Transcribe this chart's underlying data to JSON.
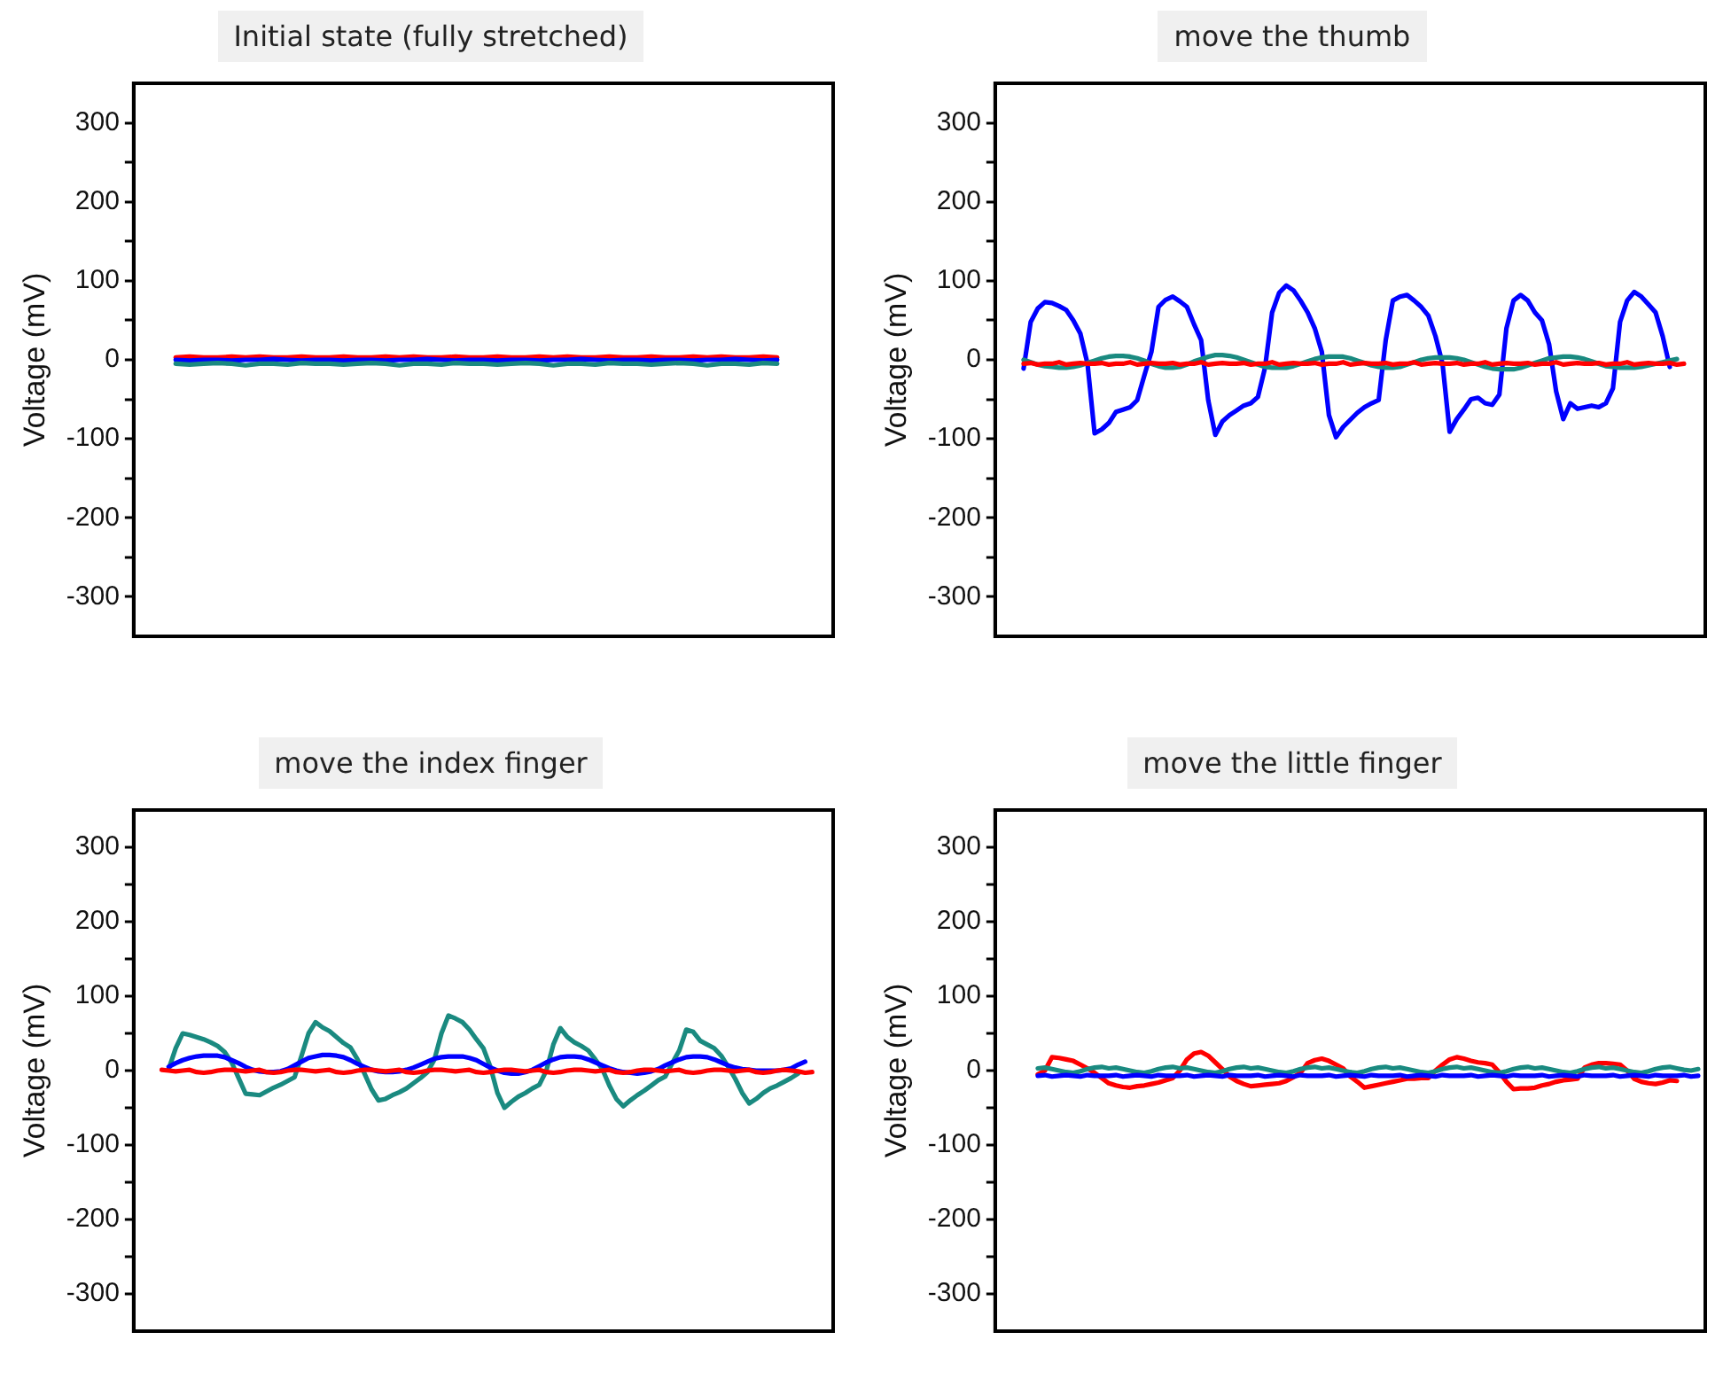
{
  "chart_data": [
    {
      "type": "line",
      "title": "Initial state (fully stretched)",
      "ylabel": "Voltage (mV)",
      "ylim": [
        -350,
        350
      ],
      "yticks": [
        -300,
        {
          "value": -250,
          "label": null
        },
        -200,
        {
          "value": -150,
          "label": null
        },
        -100,
        {
          "value": -50,
          "label": null
        },
        0,
        {
          "value": 50,
          "label": null
        },
        100,
        {
          "value": 150,
          "label": null
        },
        200,
        {
          "value": 250,
          "label": null
        },
        300
      ],
      "tick_labels": "y",
      "marker": "none",
      "line_style": "solid",
      "categories": [
        null,
        null,
        null,
        null,
        null,
        null,
        null,
        null,
        null,
        null,
        null,
        null,
        null,
        null,
        null,
        null,
        null,
        null,
        null,
        null,
        null,
        null,
        null,
        null,
        null,
        null,
        null,
        null,
        null,
        null,
        null,
        null,
        null,
        null,
        null,
        null,
        null,
        null,
        null,
        null,
        null,
        null,
        null,
        null,
        null,
        null,
        null,
        null,
        null,
        null,
        null
      ],
      "series": [
        {
          "color": "#1a8a80",
          "values": [
            null,
            null,
            null,
            -5,
            -6,
            -5,
            -4,
            -5,
            -7,
            -5,
            -5,
            -6,
            -4,
            -5,
            -5,
            -6,
            -5,
            -4,
            -5,
            -7,
            -5,
            -5,
            -6,
            -4,
            -5,
            -5,
            -6,
            -5,
            -4,
            -5,
            -7,
            -5,
            -5,
            -6,
            -4,
            -5,
            -5,
            -6,
            -5,
            -4,
            -5,
            -7,
            -5,
            -5,
            -6,
            -4,
            -5,
            null,
            null,
            null,
            null
          ]
        },
        {
          "color": "#0000ff",
          "values": [
            null,
            null,
            null,
            0,
            -1,
            0,
            0,
            -1,
            0,
            0,
            1,
            0,
            -1,
            0,
            0,
            -1,
            0,
            0,
            -1,
            0,
            0,
            1,
            0,
            -1,
            0,
            0,
            -1,
            0,
            0,
            -1,
            0,
            0,
            1,
            0,
            -1,
            0,
            0,
            -1,
            0,
            0,
            -1,
            0,
            0,
            1,
            0,
            -1,
            0,
            null,
            null,
            null,
            null
          ]
        },
        {
          "color": "#ff0000",
          "values": [
            null,
            null,
            null,
            3,
            4,
            3,
            3,
            4,
            3,
            4,
            3,
            3,
            4,
            3,
            3,
            4,
            3,
            3,
            4,
            3,
            4,
            3,
            3,
            4,
            3,
            3,
            4,
            3,
            3,
            4,
            3,
            4,
            3,
            3,
            4,
            3,
            3,
            4,
            3,
            3,
            4,
            3,
            4,
            3,
            3,
            4,
            3,
            null,
            null,
            null,
            null
          ]
        }
      ]
    },
    {
      "type": "line",
      "title": "move the thumb",
      "ylabel": "Voltage (mV)",
      "ylim": [
        -350,
        350
      ],
      "yticks": [
        -300,
        {
          "value": -250,
          "label": null
        },
        -200,
        {
          "value": -150,
          "label": null
        },
        -100,
        {
          "value": -50,
          "label": null
        },
        0,
        {
          "value": 50,
          "label": null
        },
        100,
        {
          "value": 150,
          "label": null
        },
        200,
        {
          "value": 250,
          "label": null
        },
        300
      ],
      "tick_labels": "y",
      "marker": "none",
      "line_style": "solid",
      "categories": [
        null,
        null,
        null,
        null,
        null,
        null,
        null,
        null,
        null,
        null,
        null,
        null,
        null,
        null,
        null,
        null,
        null,
        null,
        null,
        null,
        null,
        null,
        null,
        null,
        null,
        null,
        null,
        null,
        null,
        null,
        null,
        null,
        null,
        null,
        null,
        null,
        null,
        null,
        null,
        null,
        null,
        null,
        null,
        null,
        null,
        null,
        null,
        null,
        null,
        null,
        null,
        null,
        null,
        null,
        null,
        null,
        null,
        null,
        null,
        null,
        null,
        null,
        null,
        null,
        null,
        null,
        null,
        null,
        null,
        null,
        null,
        null,
        null,
        null,
        null,
        null,
        null,
        null,
        null,
        null,
        null,
        null,
        null,
        null,
        null,
        null,
        null,
        null,
        null,
        null,
        null,
        null,
        null,
        null,
        null,
        null,
        null,
        null,
        null,
        null,
        null
      ],
      "series": [
        {
          "color": "#ff0000",
          "values": [
            null,
            null,
            null,
            null,
            -5,
            -4,
            -6,
            -5,
            -5,
            -3,
            -6,
            -5,
            -4,
            -5,
            -5,
            -4,
            -6,
            -5,
            -5,
            -3,
            -6,
            -5,
            -4,
            -5,
            -5,
            -4,
            -6,
            -5,
            -5,
            -3,
            -6,
            -5,
            -4,
            -5,
            -5,
            -4,
            -6,
            -5,
            -5,
            -3,
            -6,
            -5,
            -4,
            -5,
            -5,
            -4,
            -6,
            -5,
            -5,
            -3,
            -6,
            -5,
            -4,
            -5,
            -5,
            -4,
            -6,
            -5,
            -5,
            -3,
            -6,
            -5,
            -4,
            -5,
            -5,
            -4,
            -6,
            -5,
            -5,
            -3,
            -6,
            -5,
            -4,
            -5,
            -5,
            -4,
            -6,
            -5,
            -5,
            -3,
            -6,
            -5,
            -4,
            -5,
            -5,
            -4,
            -6,
            -5,
            -5,
            -3,
            -6,
            -5,
            -4,
            -5,
            -5,
            -4,
            -6,
            -5,
            null,
            null,
            null
          ]
        },
        {
          "color": "#1a8a80",
          "values": [
            null,
            null,
            null,
            null,
            0,
            -3,
            -6,
            -8,
            -9,
            -10,
            -10,
            -9,
            -7,
            -4,
            -1,
            2,
            4,
            5,
            5,
            4,
            2,
            -1,
            -5,
            -8,
            -10,
            -10,
            -9,
            -6,
            -2,
            1,
            4,
            6,
            6,
            5,
            3,
            0,
            -3,
            -6,
            -9,
            -10,
            -10,
            -10,
            -8,
            -5,
            -2,
            1,
            3,
            4,
            4,
            4,
            2,
            -1,
            -4,
            -7,
            -9,
            -10,
            -10,
            -9,
            -6,
            -3,
            0,
            2,
            3,
            3,
            3,
            2,
            0,
            -3,
            -6,
            -9,
            -11,
            -12,
            -12,
            -12,
            -10,
            -7,
            -4,
            -1,
            2,
            3,
            4,
            4,
            3,
            1,
            -2,
            -5,
            -8,
            -9,
            -10,
            -10,
            -10,
            -9,
            -7,
            -5,
            -3,
            -1,
            1,
            null,
            null,
            null,
            null
          ]
        },
        {
          "color": "#0000ff",
          "values": [
            null,
            null,
            null,
            null,
            -11,
            48,
            65,
            73,
            72,
            68,
            63,
            50,
            33,
            -5,
            -93,
            -88,
            -80,
            -66,
            -63,
            -60,
            -51,
            -20,
            10,
            67,
            76,
            80,
            74,
            67,
            45,
            25,
            -51,
            -95,
            -78,
            -70,
            -64,
            -58,
            -55,
            -47,
            -10,
            60,
            85,
            94,
            88,
            75,
            60,
            40,
            10,
            -70,
            -98,
            -85,
            -76,
            -67,
            -60,
            -55,
            -51,
            25,
            75,
            80,
            82,
            75,
            67,
            56,
            30,
            -5,
            -91,
            -75,
            -63,
            -50,
            -48,
            -55,
            -57,
            -44,
            40,
            75,
            82,
            75,
            60,
            50,
            20,
            -40,
            -75,
            -55,
            -62,
            -60,
            -58,
            -60,
            -55,
            -36,
            48,
            75,
            86,
            80,
            70,
            60,
            30,
            -9,
            null,
            null,
            null,
            null,
            null
          ]
        }
      ]
    },
    {
      "type": "line",
      "title": "move the index finger",
      "ylabel": "Voltage (mV)",
      "ylim": [
        -350,
        350
      ],
      "yticks": [
        -300,
        {
          "value": -250,
          "label": null
        },
        -200,
        {
          "value": -150,
          "label": null
        },
        -100,
        {
          "value": -50,
          "label": null
        },
        0,
        {
          "value": 50,
          "label": null
        },
        100,
        {
          "value": 150,
          "label": null
        },
        200,
        {
          "value": 250,
          "label": null
        },
        300
      ],
      "tick_labels": "y",
      "marker": "none",
      "line_style": "solid",
      "categories": [
        null,
        null,
        null,
        null,
        null,
        null,
        null,
        null,
        null,
        null,
        null,
        null,
        null,
        null,
        null,
        null,
        null,
        null,
        null,
        null,
        null,
        null,
        null,
        null,
        null,
        null,
        null,
        null,
        null,
        null,
        null,
        null,
        null,
        null,
        null,
        null,
        null,
        null,
        null,
        null,
        null,
        null,
        null,
        null,
        null,
        null,
        null,
        null,
        null,
        null,
        null,
        null,
        null,
        null,
        null,
        null,
        null,
        null,
        null,
        null,
        null,
        null,
        null,
        null,
        null,
        null,
        null,
        null,
        null,
        null,
        null,
        null,
        null,
        null,
        null,
        null,
        null,
        null,
        null,
        null,
        null,
        null,
        null,
        null,
        null,
        null,
        null,
        null,
        null,
        null,
        null,
        null,
        null,
        null,
        null,
        null,
        null,
        null,
        null,
        null,
        null
      ],
      "series": [
        {
          "color": "#ff0000",
          "values": [
            null,
            null,
            null,
            null,
            1,
            0,
            -1,
            0,
            1,
            -2,
            -3,
            -2,
            0,
            1,
            1,
            0,
            -1,
            0,
            1,
            -2,
            -3,
            -2,
            0,
            1,
            1,
            0,
            -1,
            0,
            1,
            -2,
            -3,
            -2,
            0,
            1,
            1,
            0,
            -1,
            0,
            1,
            -2,
            -3,
            -2,
            0,
            1,
            1,
            0,
            -1,
            0,
            1,
            -2,
            -3,
            -2,
            0,
            1,
            1,
            0,
            -1,
            0,
            1,
            -2,
            -3,
            -2,
            0,
            1,
            1,
            0,
            -1,
            0,
            1,
            -2,
            -3,
            -2,
            0,
            1,
            1,
            0,
            -1,
            0,
            1,
            -2,
            -3,
            -2,
            0,
            1,
            1,
            0,
            -1,
            0,
            1,
            -2,
            -3,
            -2,
            0,
            1,
            0,
            -1,
            -3,
            -2,
            null,
            null,
            null
          ]
        },
        {
          "color": "#0000ff",
          "values": [
            null,
            null,
            null,
            null,
            null,
            5,
            10,
            14,
            17,
            19,
            20,
            20,
            20,
            18,
            14,
            10,
            5,
            1,
            -1,
            -2,
            -2,
            -1,
            2,
            7,
            12,
            17,
            19,
            21,
            21,
            20,
            18,
            14,
            9,
            5,
            1,
            -1,
            -2,
            -2,
            -1,
            1,
            4,
            8,
            12,
            16,
            18,
            19,
            19,
            19,
            17,
            14,
            9,
            4,
            0,
            -3,
            -4,
            -4,
            -2,
            1,
            6,
            11,
            15,
            18,
            19,
            19,
            18,
            15,
            11,
            7,
            3,
            0,
            -2,
            -3,
            -4,
            -3,
            -1,
            2,
            7,
            11,
            15,
            18,
            19,
            19,
            18,
            15,
            11,
            7,
            4,
            2,
            1,
            0,
            0,
            0,
            0,
            1,
            3,
            8,
            12,
            null,
            null,
            null,
            null
          ]
        },
        {
          "color": "#1a8a80",
          "values": [
            null,
            null,
            null,
            null,
            null,
            2,
            30,
            50,
            48,
            45,
            42,
            38,
            33,
            25,
            11,
            -10,
            -31,
            -32,
            -33,
            -28,
            -23,
            -19,
            -14,
            -9,
            20,
            50,
            65,
            58,
            53,
            45,
            37,
            31,
            15,
            -4,
            -25,
            -40,
            -38,
            -33,
            -29,
            -24,
            -17,
            -10,
            -2,
            15,
            50,
            74,
            70,
            65,
            55,
            42,
            30,
            5,
            -30,
            -50,
            -42,
            -35,
            -30,
            -24,
            -19,
            0,
            35,
            57,
            45,
            38,
            33,
            27,
            15,
            2,
            -20,
            -38,
            -48,
            -40,
            -33,
            -27,
            -20,
            -13,
            -8,
            10,
            27,
            55,
            52,
            40,
            35,
            30,
            20,
            5,
            -11,
            -30,
            -44,
            -38,
            -30,
            -24,
            -20,
            -15,
            -10,
            -4,
            null,
            null,
            null,
            null,
            null
          ]
        }
      ]
    },
    {
      "type": "line",
      "title": "move the little finger",
      "ylabel": "Voltage (mV)",
      "ylim": [
        -350,
        350
      ],
      "yticks": [
        -300,
        {
          "value": -250,
          "label": null
        },
        -200,
        {
          "value": -150,
          "label": null
        },
        -100,
        {
          "value": -50,
          "label": null
        },
        0,
        {
          "value": 50,
          "label": null
        },
        100,
        {
          "value": 150,
          "label": null
        },
        200,
        {
          "value": 250,
          "label": null
        },
        300
      ],
      "tick_labels": "y",
      "marker": "none",
      "line_style": "solid",
      "categories": [
        null,
        null,
        null,
        null,
        null,
        null,
        null,
        null,
        null,
        null,
        null,
        null,
        null,
        null,
        null,
        null,
        null,
        null,
        null,
        null,
        null,
        null,
        null,
        null,
        null,
        null,
        null,
        null,
        null,
        null,
        null,
        null,
        null,
        null,
        null,
        null,
        null,
        null,
        null,
        null,
        null,
        null,
        null,
        null,
        null,
        null,
        null,
        null,
        null,
        null,
        null,
        null,
        null,
        null,
        null,
        null,
        null,
        null,
        null,
        null,
        null,
        null,
        null,
        null,
        null,
        null,
        null,
        null,
        null,
        null,
        null,
        null,
        null,
        null,
        null,
        null,
        null,
        null,
        null,
        null,
        null,
        null,
        null,
        null,
        null,
        null,
        null,
        null,
        null,
        null,
        null,
        null,
        null,
        null,
        null,
        null,
        null,
        null,
        null,
        null,
        null
      ],
      "series": [
        {
          "color": "#0000ff",
          "values": [
            null,
            null,
            null,
            null,
            null,
            null,
            -7,
            -6,
            -8,
            -7,
            -6,
            -7,
            -8,
            -6,
            -7,
            -7,
            -7,
            -6,
            -8,
            -7,
            -6,
            -7,
            -8,
            -6,
            -7,
            -7,
            -7,
            -6,
            -8,
            -7,
            -6,
            -7,
            -8,
            -6,
            -7,
            -7,
            -7,
            -6,
            -8,
            -7,
            -6,
            -7,
            -8,
            -6,
            -7,
            -7,
            -7,
            -6,
            -8,
            -7,
            -6,
            -7,
            -8,
            -6,
            -7,
            -7,
            -7,
            -6,
            -8,
            -7,
            -6,
            -7,
            -8,
            -6,
            -7,
            -7,
            -7,
            -6,
            -8,
            -7,
            -6,
            -7,
            -8,
            -6,
            -7,
            -7,
            -7,
            -6,
            -8,
            -7,
            -6,
            -7,
            -8,
            -6,
            -7,
            -7,
            -7,
            -6,
            -8,
            -7,
            -6,
            -7,
            -8,
            -6,
            -7,
            -7,
            -7,
            -6,
            -8,
            -7,
            null
          ]
        },
        {
          "color": "#1a8a80",
          "values": [
            null,
            null,
            null,
            null,
            null,
            null,
            3,
            4,
            2,
            0,
            -2,
            -3,
            -1,
            2,
            4,
            5,
            3,
            4,
            2,
            0,
            -2,
            -3,
            -1,
            2,
            4,
            5,
            3,
            4,
            2,
            0,
            -2,
            -3,
            -1,
            2,
            4,
            5,
            3,
            4,
            2,
            0,
            -2,
            -3,
            -1,
            2,
            4,
            5,
            3,
            4,
            2,
            0,
            -2,
            -3,
            -1,
            2,
            4,
            5,
            3,
            4,
            2,
            0,
            -2,
            -3,
            -1,
            2,
            4,
            5,
            3,
            4,
            2,
            0,
            -2,
            -3,
            -1,
            2,
            4,
            5,
            3,
            4,
            2,
            0,
            -2,
            -3,
            -1,
            2,
            4,
            5,
            3,
            4,
            2,
            0,
            -2,
            -3,
            -1,
            2,
            4,
            5,
            3,
            1,
            0,
            2,
            null
          ]
        },
        {
          "color": "#ff0000",
          "values": [
            null,
            null,
            null,
            null,
            null,
            null,
            -5,
            0,
            18,
            17,
            15,
            13,
            8,
            3,
            -3,
            -10,
            -17,
            -20,
            -22,
            -23,
            -21,
            -20,
            -18,
            -16,
            -13,
            -10,
            0,
            15,
            23,
            25,
            20,
            11,
            2,
            -8,
            -14,
            -18,
            -21,
            -20,
            -19,
            -18,
            -17,
            -14,
            -9,
            -3,
            10,
            14,
            16,
            13,
            8,
            3,
            -8,
            -15,
            -23,
            -21,
            -19,
            -17,
            -15,
            -13,
            -11,
            -11,
            -10,
            -10,
            0,
            8,
            15,
            18,
            16,
            13,
            11,
            10,
            8,
            -2,
            -15,
            -25,
            -24,
            -24,
            -23,
            -20,
            -18,
            -15,
            -13,
            -12,
            -11,
            4,
            8,
            10,
            10,
            9,
            8,
            0,
            -11,
            -15,
            -17,
            -18,
            -16,
            -13,
            -14,
            null,
            null,
            null,
            null
          ]
        }
      ]
    }
  ]
}
